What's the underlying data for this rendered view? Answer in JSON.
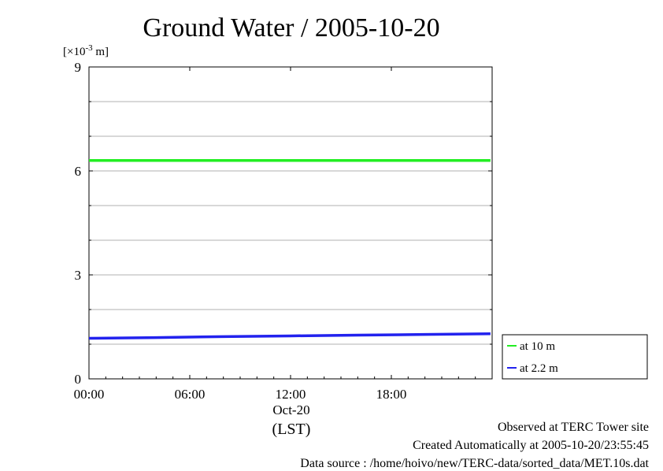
{
  "chart_data": {
    "type": "line",
    "title": "Ground Water / 2005-10-20",
    "y_unit_prefix": "[×10",
    "y_unit_exp": "-3",
    "y_unit_suffix": " m]",
    "x_range": [
      0,
      24
    ],
    "ylim": [
      0,
      9
    ],
    "y_major_ticks": [
      0,
      3,
      6,
      9
    ],
    "y_gridlines": [
      1,
      2,
      3,
      4,
      5,
      6,
      7,
      8
    ],
    "x_ticks": [
      {
        "value": 0,
        "label": "00:00"
      },
      {
        "value": 6,
        "label": "06:00"
      },
      {
        "value": 12,
        "label": "12:00"
      },
      {
        "value": 18,
        "label": "18:00"
      }
    ],
    "x_date_label": "Oct-20",
    "x_axis_label": "(LST)",
    "series": [
      {
        "name": "at 10 m",
        "color": "#22ee22",
        "x": [
          0,
          4,
          8,
          12,
          16,
          20,
          23.9
        ],
        "y": [
          6.3,
          6.3,
          6.3,
          6.3,
          6.3,
          6.3,
          6.3
        ]
      },
      {
        "name": "at 2.2 m",
        "color": "#2222ee",
        "x": [
          0,
          4,
          8,
          12,
          16,
          20,
          23.9
        ],
        "y": [
          1.17,
          1.19,
          1.22,
          1.24,
          1.26,
          1.28,
          1.3
        ]
      }
    ],
    "grid": true,
    "legend_position": "bottom-right outside"
  },
  "footer": {
    "observed": "Observed at TERC Tower site",
    "created": "Created Automatically at 2005-10-20/23:55:45",
    "source": "Data source : /home/hoivo/new/TERC-data/sorted_data/MET.10s.dat"
  }
}
